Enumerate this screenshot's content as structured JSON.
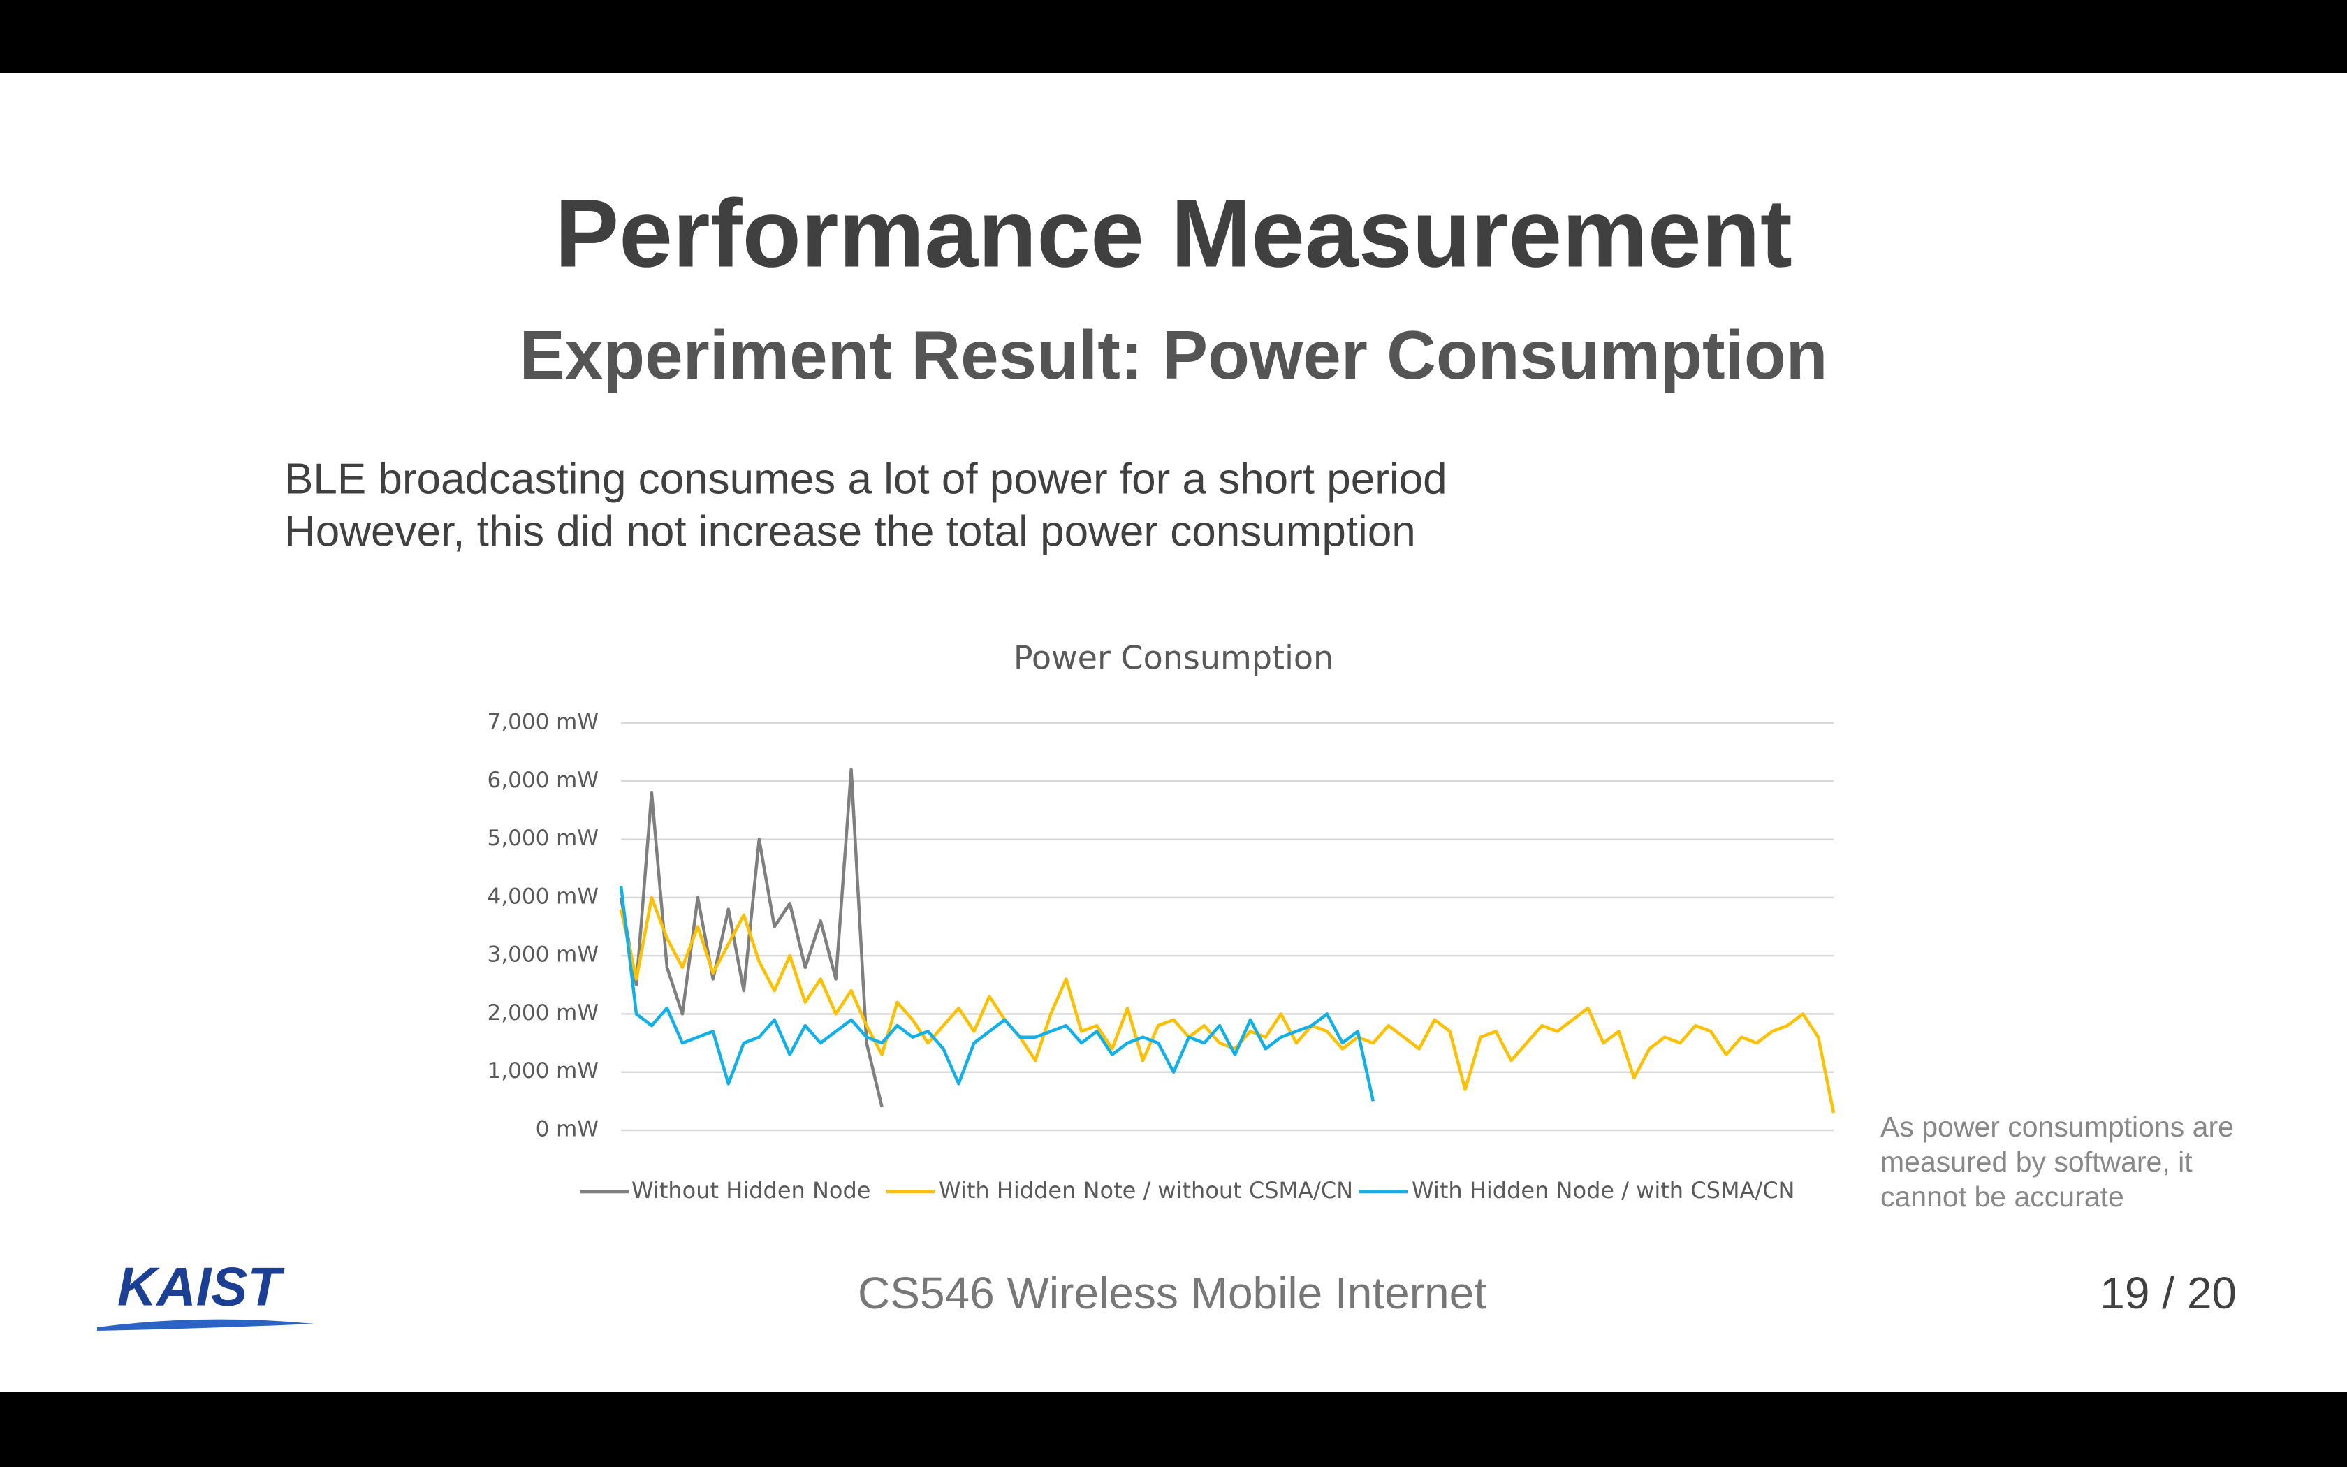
{
  "header": {
    "title": "Performance Measurement",
    "subtitle": "Experiment Result: Power Consumption"
  },
  "body": {
    "lines": [
      "BLE broadcasting consumes a lot of power for a short period",
      "However, this did not increase the total power consumption"
    ]
  },
  "note": "As power consumptions are measured by software, it cannot be accurate",
  "footer": {
    "logo": "KAIST",
    "course": "CS546 Wireless Mobile Internet",
    "page": "19 / 20"
  },
  "chart_data": {
    "type": "line",
    "title": "Power Consumption",
    "categories": [
      null,
      null,
      null,
      null,
      null,
      null,
      null,
      null,
      null,
      null,
      null,
      null,
      null,
      null,
      null,
      null,
      null,
      null,
      null,
      null,
      null,
      null,
      null,
      null,
      null,
      null,
      null,
      null,
      null,
      null,
      null,
      null,
      null,
      null,
      null,
      null,
      null,
      null,
      null,
      null,
      null,
      null,
      null,
      null,
      null,
      null,
      null,
      null,
      null,
      null,
      null,
      null,
      null,
      null,
      null,
      null,
      null,
      null,
      null,
      null,
      null,
      null,
      null,
      null,
      null,
      null,
      null,
      null,
      null,
      null,
      null,
      null,
      null,
      null,
      null,
      null,
      null,
      null,
      null,
      null
    ],
    "series": [
      {
        "name": "Without Hidden Node",
        "color": "#7f7f7f",
        "values": [
          4000,
          2500,
          5800,
          2800,
          2000,
          4000,
          2600,
          3800,
          2400,
          5000,
          3500,
          3900,
          2800,
          3600,
          2600,
          6200,
          1500,
          400,
          null,
          null,
          null,
          null,
          null,
          null,
          null,
          null,
          null,
          null,
          null,
          null,
          null,
          null,
          null,
          null,
          null,
          null,
          null,
          null,
          null,
          null,
          null,
          null,
          null,
          null,
          null,
          null,
          null,
          null,
          null,
          null,
          null,
          null,
          null,
          null,
          null,
          null,
          null,
          null,
          null,
          null,
          null,
          null,
          null,
          null,
          null,
          null,
          null,
          null,
          null,
          null,
          null,
          null,
          null,
          null,
          null,
          null,
          null,
          null,
          null,
          null
        ]
      },
      {
        "name": "With Hidden Note / without CSMA/CN",
        "color": "#ffc000",
        "values": [
          3800,
          2600,
          4000,
          3300,
          2800,
          3500,
          2700,
          3200,
          3700,
          2900,
          2400,
          3000,
          2200,
          2600,
          2000,
          2400,
          1800,
          1300,
          2200,
          1900,
          1500,
          1800,
          2100,
          1700,
          2300,
          1900,
          1600,
          1200,
          2000,
          2600,
          1700,
          1800,
          1400,
          2100,
          1200,
          1800,
          1900,
          1600,
          1800,
          1500,
          1400,
          1700,
          1600,
          2000,
          1500,
          1800,
          1700,
          1400,
          1600,
          1500,
          1800,
          1600,
          1400,
          1900,
          1700,
          700,
          1600,
          1700,
          1200,
          1500,
          1800,
          1700,
          1900,
          2100,
          1500,
          1700,
          900,
          1400,
          1600,
          1500,
          1800,
          1700,
          1300,
          1600,
          1500,
          1700,
          1800,
          2000,
          1600,
          300
        ]
      },
      {
        "name": "With Hidden Node / with CSMA/CN",
        "color": "#12b0e8",
        "values": [
          4200,
          2000,
          1800,
          2100,
          1500,
          1600,
          1700,
          800,
          1500,
          1600,
          1900,
          1300,
          1800,
          1500,
          1700,
          1900,
          1600,
          1500,
          1800,
          1600,
          1700,
          1400,
          800,
          1500,
          1700,
          1900,
          1600,
          1600,
          1700,
          1800,
          1500,
          1700,
          1300,
          1500,
          1600,
          1500,
          1000,
          1600,
          1500,
          1800,
          1300,
          1900,
          1400,
          1600,
          1700,
          1800,
          2000,
          1500,
          1700,
          500,
          null,
          null,
          null,
          null,
          null,
          null,
          null,
          null,
          null,
          null,
          null,
          null,
          null,
          null,
          null,
          null,
          null,
          null,
          null,
          null,
          null,
          null,
          null,
          null,
          null,
          null,
          null,
          null,
          null,
          null
        ]
      }
    ],
    "ylim": [
      0,
      7000
    ],
    "yticks": [
      {
        "value": 0,
        "label": "0 mW"
      },
      {
        "value": 1000,
        "label": "1,000 mW"
      },
      {
        "value": 2000,
        "label": "2,000 mW"
      },
      {
        "value": 3000,
        "label": "3,000 mW"
      },
      {
        "value": 4000,
        "label": "4,000 mW"
      },
      {
        "value": 5000,
        "label": "5,000 mW"
      },
      {
        "value": 6000,
        "label": "6,000 mW"
      },
      {
        "value": 7000,
        "label": "7,000 mW"
      }
    ],
    "grid": true,
    "legend": "bottom"
  }
}
